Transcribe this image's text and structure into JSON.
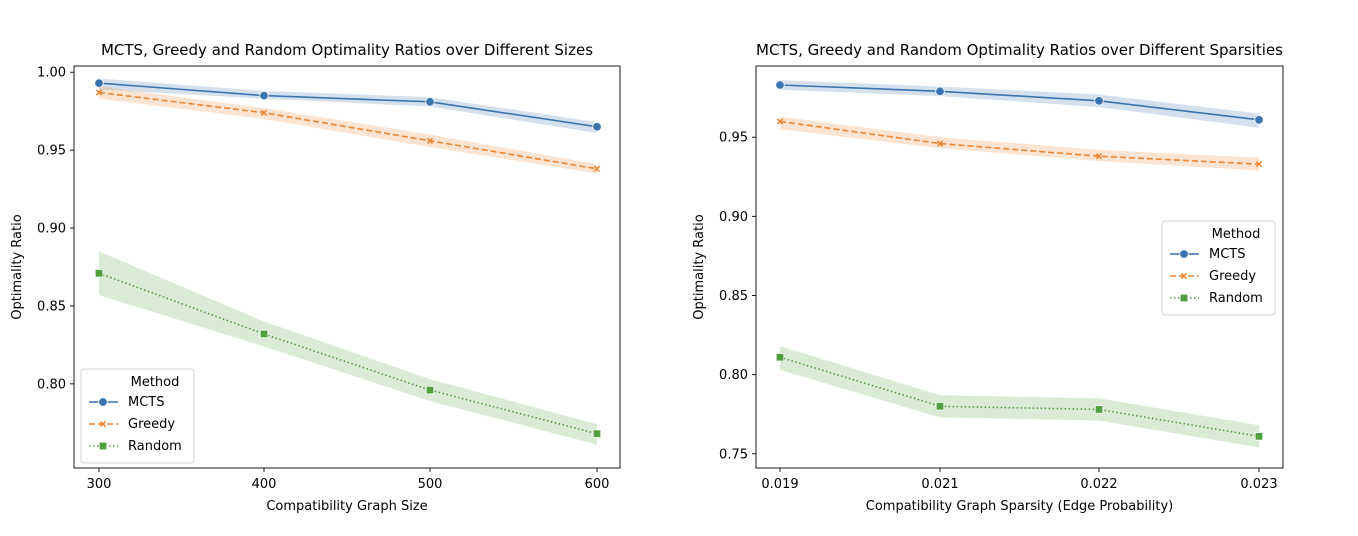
{
  "colors": {
    "MCTS": "#3a75af",
    "Greedy": "#ee8634",
    "Random": "#519e3e"
  },
  "chart_data": [
    {
      "type": "line",
      "title": "MCTS, Greedy and Random Optimality Ratios over Different Sizes",
      "xlabel": "Compatibility Graph Size",
      "ylabel": "Optimality Ratio",
      "x": [
        300,
        400,
        500,
        600
      ],
      "xticks": [
        "300",
        "400",
        "500",
        "600"
      ],
      "yticks": [
        "0.80",
        "0.85",
        "0.90",
        "0.95",
        "1.00"
      ],
      "ylim": [
        0.746,
        1.004
      ],
      "grid": false,
      "legend_title": "Method",
      "legend_position": "lower-left",
      "series": [
        {
          "name": "MCTS",
          "marker": "circle",
          "linestyle": "solid",
          "values": [
            0.993,
            0.985,
            0.981,
            0.965
          ],
          "ci_low": [
            0.989,
            0.983,
            0.978,
            0.961
          ],
          "ci_high": [
            0.996,
            0.988,
            0.984,
            0.968
          ]
        },
        {
          "name": "Greedy",
          "marker": "x",
          "linestyle": "dashed",
          "values": [
            0.987,
            0.974,
            0.956,
            0.938
          ],
          "ci_low": [
            0.983,
            0.97,
            0.952,
            0.935
          ],
          "ci_high": [
            0.991,
            0.977,
            0.96,
            0.941
          ]
        },
        {
          "name": "Random",
          "marker": "square",
          "linestyle": "dotted",
          "values": [
            0.871,
            0.832,
            0.796,
            0.768
          ],
          "ci_low": [
            0.857,
            0.824,
            0.789,
            0.761
          ],
          "ci_high": [
            0.885,
            0.84,
            0.803,
            0.774
          ]
        }
      ]
    },
    {
      "type": "line",
      "title": "MCTS, Greedy and Random Optimality Ratios over Different Sparsities",
      "xlabel": "Compatibility Graph Sparsity (Edge Probability)",
      "ylabel": "Optimality Ratio",
      "x": [
        0.019,
        0.021,
        0.022,
        0.023
      ],
      "xticks": [
        "0.019",
        "0.021",
        "0.022",
        "0.023"
      ],
      "yticks": [
        "0.75",
        "0.80",
        "0.85",
        "0.90",
        "0.95"
      ],
      "ylim": [
        0.741,
        0.995
      ],
      "grid": false,
      "legend_title": "Method",
      "legend_position": "center-right",
      "series": [
        {
          "name": "MCTS",
          "marker": "circle",
          "linestyle": "solid",
          "values": [
            0.983,
            0.979,
            0.973,
            0.961
          ],
          "ci_low": [
            0.98,
            0.976,
            0.969,
            0.956
          ],
          "ci_high": [
            0.986,
            0.982,
            0.977,
            0.965
          ]
        },
        {
          "name": "Greedy",
          "marker": "x",
          "linestyle": "dashed",
          "values": [
            0.96,
            0.946,
            0.938,
            0.933
          ],
          "ci_low": [
            0.955,
            0.943,
            0.935,
            0.929
          ],
          "ci_high": [
            0.963,
            0.95,
            0.942,
            0.937
          ]
        },
        {
          "name": "Random",
          "marker": "square",
          "linestyle": "dotted",
          "values": [
            0.811,
            0.78,
            0.778,
            0.761
          ],
          "ci_low": [
            0.803,
            0.773,
            0.771,
            0.754
          ],
          "ci_high": [
            0.818,
            0.787,
            0.785,
            0.768
          ]
        }
      ]
    }
  ]
}
